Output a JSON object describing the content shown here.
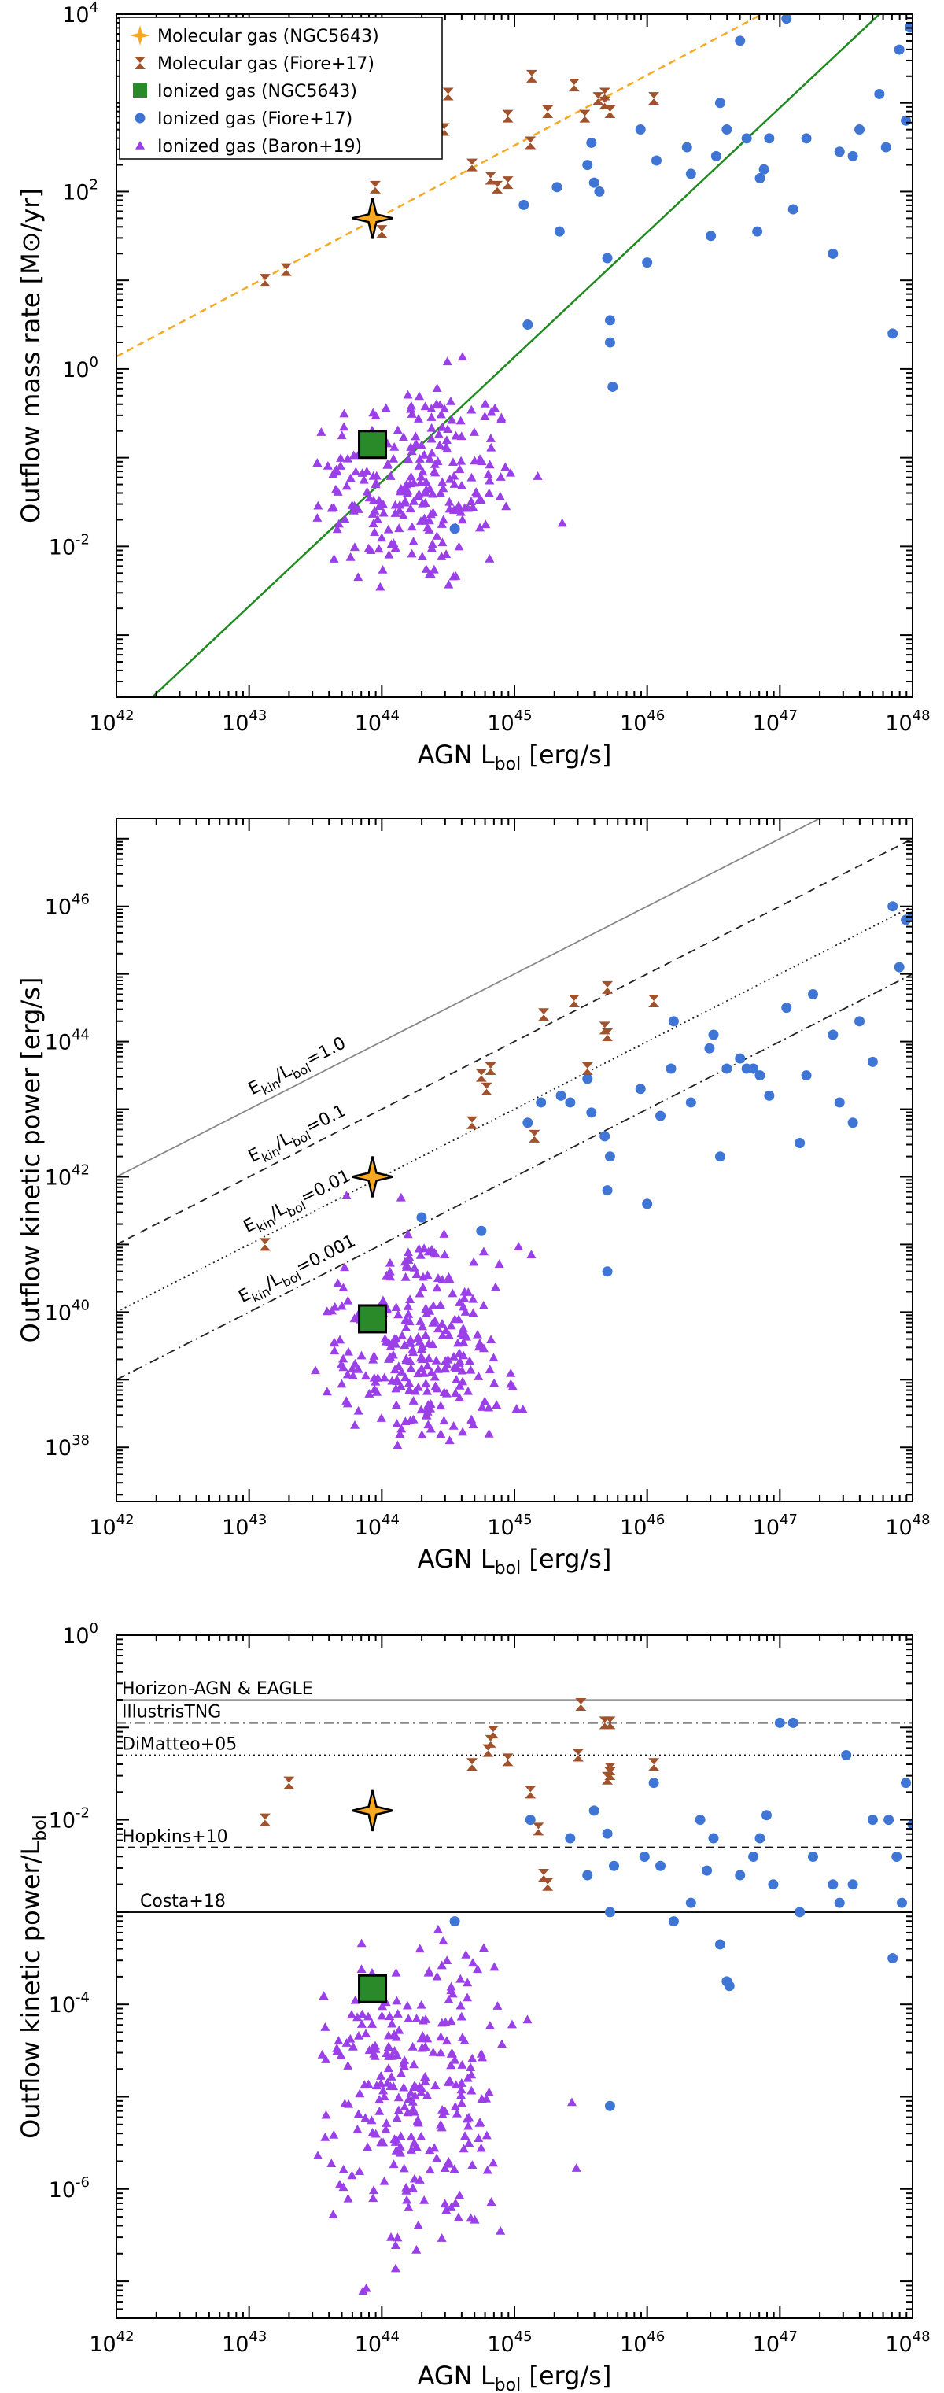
{
  "colors": {
    "molecular_ngc": "#f7a823",
    "molecular_fiore": "#a0522d",
    "ionized_ngc": "#2a8a2a",
    "ionized_fiore": "#3f76d6",
    "ionized_baron": "#9b3fe8",
    "fit_molecular": "#f7a823",
    "fit_ionized": "#1f8a1f"
  },
  "chart_data": [
    {
      "type": "scatter",
      "title": "",
      "xlabel": "AGN L_bol [erg/s]",
      "xlabel_parts": [
        "AGN L",
        "bol",
        " [erg/s]"
      ],
      "ylabel": "Outflow mass rate [M⊙/yr]",
      "xscale": "log",
      "yscale": "log",
      "xlim_log": [
        42,
        48
      ],
      "ylim_log": [
        -3.7,
        4
      ],
      "xticks_log": [
        42,
        43,
        44,
        45,
        46,
        47,
        48
      ],
      "yticks_log": [
        -2,
        0,
        2,
        4
      ],
      "legend_position": "top-left",
      "legend": [
        {
          "name": "Molecular gas (NGC5643)",
          "marker": "star"
        },
        {
          "name": "Molecular gas (Fiore+17)",
          "marker": "hourglass"
        },
        {
          "name": "Ionized gas (NGC5643)",
          "marker": "square"
        },
        {
          "name": "Ionized gas (Fiore+17)",
          "marker": "circle"
        },
        {
          "name": "Ionized gas (Baron+19)",
          "marker": "triangle"
        }
      ],
      "fits": [
        {
          "name": "Molecular fit",
          "style": "dashed",
          "x1": 42,
          "y1": 0.14,
          "x2": 48,
          "y2": 4.9
        },
        {
          "name": "Ionized fit",
          "style": "solid",
          "x1": 42.27,
          "y1": -3.7,
          "x2": 48,
          "y2": 4.35
        }
      ],
      "series": [
        {
          "name": "Molecular gas (NGC5643)",
          "marker": "star",
          "points": [
            [
              43.93,
              1.7
            ]
          ]
        },
        {
          "name": "Ionized gas (NGC5643)",
          "marker": "square",
          "points": [
            [
              43.93,
              -0.85
            ]
          ]
        },
        {
          "name": "Molecular gas (Fiore+17)",
          "marker": "hourglass",
          "points": [
            [
              43.12,
              1.0
            ],
            [
              43.28,
              1.12
            ],
            [
              43.95,
              2.05
            ],
            [
              44.0,
              1.55
            ],
            [
              44.47,
              2.7
            ],
            [
              44.5,
              3.1
            ],
            [
              44.68,
              2.3
            ],
            [
              44.82,
              2.15
            ],
            [
              44.87,
              2.05
            ],
            [
              44.95,
              2.85
            ],
            [
              45.12,
              2.55
            ],
            [
              45.13,
              3.3
            ],
            [
              45.25,
              2.9
            ],
            [
              45.45,
              3.2
            ],
            [
              45.53,
              2.85
            ],
            [
              45.63,
              3.05
            ],
            [
              45.68,
              3.1
            ],
            [
              45.68,
              3.0
            ],
            [
              45.72,
              2.9
            ],
            [
              46.05,
              3.05
            ],
            [
              44.95,
              2.1
            ]
          ]
        },
        {
          "name": "Ionized gas (Fiore+17)",
          "marker": "circle",
          "points": [
            [
              44.55,
              -1.8
            ],
            [
              45.07,
              1.85
            ],
            [
              45.1,
              0.5
            ],
            [
              45.32,
              2.05
            ],
            [
              45.34,
              1.55
            ],
            [
              45.55,
              2.3
            ],
            [
              45.58,
              2.55
            ],
            [
              45.6,
              2.1
            ],
            [
              45.64,
              2.0
            ],
            [
              45.7,
              1.25
            ],
            [
              45.72,
              0.3
            ],
            [
              45.72,
              0.55
            ],
            [
              45.74,
              -0.2
            ],
            [
              45.95,
              2.7
            ],
            [
              46.07,
              2.35
            ],
            [
              46.3,
              2.5
            ],
            [
              46.33,
              2.2
            ],
            [
              46.48,
              1.5
            ],
            [
              46.52,
              2.4
            ],
            [
              46.55,
              3.0
            ],
            [
              46.6,
              2.7
            ],
            [
              46.75,
              2.6
            ],
            [
              46.83,
              1.55
            ],
            [
              46.85,
              2.15
            ],
            [
              46.88,
              2.25
            ],
            [
              46.92,
              2.6
            ],
            [
              47.05,
              3.95
            ],
            [
              47.1,
              1.8
            ],
            [
              47.2,
              2.6
            ],
            [
              47.4,
              1.3
            ],
            [
              47.45,
              2.45
            ],
            [
              47.55,
              2.4
            ],
            [
              47.75,
              3.1
            ],
            [
              47.9,
              3.6
            ],
            [
              47.95,
              2.8
            ],
            [
              47.98,
              3.85
            ],
            [
              46.0,
              1.2
            ],
            [
              46.7,
              3.7
            ],
            [
              47.6,
              2.7
            ],
            [
              47.8,
              2.5
            ],
            [
              47.85,
              0.4
            ]
          ]
        }
      ],
      "baron_cloud": {
        "name": "Ionized gas (Baron+19)",
        "marker": "triangle",
        "count": 240,
        "xlog_range": [
          43.5,
          45.5
        ],
        "ylog_range": [
          -2.6,
          0.5
        ],
        "center_log": [
          44.25,
          -1.3
        ]
      }
    },
    {
      "type": "scatter",
      "title": "",
      "xlabel": "AGN L_bol [erg/s]",
      "xlabel_parts": [
        "AGN L",
        "bol",
        " [erg/s]"
      ],
      "ylabel": "Outflow kinetic power [erg/s]",
      "xscale": "log",
      "yscale": "log",
      "xlim_log": [
        42,
        48
      ],
      "ylim_log": [
        37.2,
        47.3
      ],
      "xticks_log": [
        42,
        43,
        44,
        45,
        46,
        47,
        48
      ],
      "yticks_log": [
        38,
        40,
        42,
        44,
        46
      ],
      "reference_lines": [
        {
          "label": "E_kin/L_bol=1.0",
          "label_parts": [
            "E",
            "kin",
            "/L",
            "bol",
            "=1.0"
          ],
          "ratio_log": 0,
          "style": "solid"
        },
        {
          "label": "E_kin/L_bol=0.1",
          "label_parts": [
            "E",
            "kin",
            "/L",
            "bol",
            "=0.1"
          ],
          "ratio_log": -1,
          "style": "dashed"
        },
        {
          "label": "E_kin/L_bol=0.01",
          "label_parts": [
            "E",
            "kin",
            "/L",
            "bol",
            "=0.01"
          ],
          "ratio_log": -2,
          "style": "dotted"
        },
        {
          "label": "E_kin/L_bol=0.001",
          "label_parts": [
            "E",
            "kin",
            "/L",
            "bol",
            "=0.001"
          ],
          "ratio_log": -3,
          "style": "dashdot"
        }
      ],
      "series": [
        {
          "name": "Molecular gas (NGC5643)",
          "marker": "star",
          "points": [
            [
              43.93,
              42.0
            ]
          ]
        },
        {
          "name": "Ionized gas (NGC5643)",
          "marker": "square",
          "points": [
            [
              43.93,
              39.9
            ]
          ]
        },
        {
          "name": "Molecular gas (Fiore+17)",
          "marker": "hourglass",
          "points": [
            [
              43.12,
              41.0
            ],
            [
              44.68,
              42.8
            ],
            [
              44.75,
              43.5
            ],
            [
              44.79,
              43.3
            ],
            [
              44.82,
              43.6
            ],
            [
              45.15,
              42.6
            ],
            [
              45.22,
              44.4
            ],
            [
              45.45,
              44.6
            ],
            [
              45.55,
              43.6
            ],
            [
              45.68,
              44.2
            ],
            [
              45.7,
              44.1
            ],
            [
              45.7,
              44.8
            ],
            [
              46.05,
              44.6
            ]
          ]
        },
        {
          "name": "Ionized gas (Fiore+17)",
          "marker": "circle",
          "points": [
            [
              44.3,
              41.4
            ],
            [
              44.75,
              41.2
            ],
            [
              45.1,
              42.8
            ],
            [
              45.2,
              43.1
            ],
            [
              45.35,
              43.2
            ],
            [
              45.42,
              43.1
            ],
            [
              45.55,
              43.45
            ],
            [
              45.58,
              42.95
            ],
            [
              45.68,
              42.6
            ],
            [
              45.7,
              41.8
            ],
            [
              45.7,
              40.6
            ],
            [
              45.72,
              42.3
            ],
            [
              45.95,
              43.3
            ],
            [
              46.1,
              42.9
            ],
            [
              46.18,
              43.6
            ],
            [
              46.33,
              43.1
            ],
            [
              46.47,
              43.9
            ],
            [
              46.5,
              44.1
            ],
            [
              46.55,
              42.3
            ],
            [
              46.6,
              43.6
            ],
            [
              46.7,
              43.75
            ],
            [
              46.75,
              43.6
            ],
            [
              46.8,
              43.6
            ],
            [
              46.85,
              43.5
            ],
            [
              46.92,
              43.2
            ],
            [
              47.05,
              44.5
            ],
            [
              47.15,
              42.5
            ],
            [
              47.2,
              43.5
            ],
            [
              47.4,
              44.1
            ],
            [
              47.45,
              43.1
            ],
            [
              47.55,
              42.8
            ],
            [
              47.6,
              44.3
            ],
            [
              47.7,
              43.7
            ],
            [
              47.85,
              46.0
            ],
            [
              47.9,
              45.1
            ],
            [
              47.95,
              45.8
            ],
            [
              48.0,
              45.85
            ],
            [
              46.2,
              44.3
            ],
            [
              46.0,
              41.6
            ],
            [
              47.25,
              44.7
            ]
          ]
        }
      ],
      "baron_cloud": {
        "name": "Ionized gas (Baron+19)",
        "marker": "triangle",
        "count": 270,
        "xlog_range": [
          43.5,
          45.5
        ],
        "ylog_range": [
          38.0,
          41.9
        ],
        "center_log": [
          44.25,
          39.4
        ]
      }
    },
    {
      "type": "scatter",
      "title": "",
      "xlabel": "AGN L_bol [erg/s]",
      "xlabel_parts": [
        "AGN L",
        "bol",
        " [erg/s]"
      ],
      "ylabel": "Outflow kinetic power/L_bol",
      "ylabel_parts": [
        "Outflow kinetic power/L",
        "bol"
      ],
      "xscale": "log",
      "yscale": "log",
      "xlim_log": [
        42,
        48
      ],
      "ylim_log": [
        -7.4,
        0
      ],
      "xticks_log": [
        42,
        43,
        44,
        45,
        46,
        47,
        48
      ],
      "yticks_log": [
        -6,
        -4,
        -2,
        0
      ],
      "reference_lines": [
        {
          "label": "Horizon-AGN & EAGLE",
          "y_log": -0.7,
          "style": "solid-gray"
        },
        {
          "label": "IllustrisTNG",
          "y_log": -0.95,
          "style": "dashdot"
        },
        {
          "label": "DiMatteo+05",
          "y_log": -1.3,
          "style": "dotted"
        },
        {
          "label": "Hopkins+10",
          "y_log": -2.3,
          "style": "dashed"
        },
        {
          "label": "Costa+18",
          "y_log": -3.0,
          "style": "solid"
        }
      ],
      "series": [
        {
          "name": "Molecular gas (NGC5643)",
          "marker": "star",
          "points": [
            [
              43.93,
              -1.9
            ]
          ]
        },
        {
          "name": "Ionized gas (NGC5643)",
          "marker": "square",
          "points": [
            [
              43.93,
              -3.83
            ]
          ]
        },
        {
          "name": "Molecular gas (Fiore+17)",
          "marker": "hourglass",
          "points": [
            [
              43.12,
              -2.0
            ],
            [
              43.3,
              -1.6
            ],
            [
              44.68,
              -1.4
            ],
            [
              44.8,
              -1.25
            ],
            [
              44.82,
              -1.15
            ],
            [
              44.84,
              -1.05
            ],
            [
              44.95,
              -1.35
            ],
            [
              45.12,
              -1.7
            ],
            [
              45.18,
              -2.1
            ],
            [
              45.22,
              -2.6
            ],
            [
              45.25,
              -2.7
            ],
            [
              45.48,
              -1.3
            ],
            [
              45.5,
              -0.75
            ],
            [
              45.68,
              -0.95
            ],
            [
              45.7,
              -1.55
            ],
            [
              45.72,
              -1.45
            ],
            [
              45.72,
              -1.5
            ],
            [
              45.72,
              -0.95
            ],
            [
              46.05,
              -1.4
            ]
          ]
        },
        {
          "name": "Ionized gas (Fiore+17)",
          "marker": "circle",
          "points": [
            [
              44.55,
              -3.1
            ],
            [
              45.12,
              -2.0
            ],
            [
              45.42,
              -2.2
            ],
            [
              45.55,
              -2.6
            ],
            [
              45.6,
              -1.9
            ],
            [
              45.7,
              -2.15
            ],
            [
              45.72,
              -3.0
            ],
            [
              45.72,
              -5.1
            ],
            [
              45.75,
              -2.5
            ],
            [
              45.98,
              -2.4
            ],
            [
              46.1,
              -2.5
            ],
            [
              46.2,
              -3.1
            ],
            [
              46.33,
              -2.9
            ],
            [
              46.45,
              -2.55
            ],
            [
              46.5,
              -2.2
            ],
            [
              46.55,
              -3.35
            ],
            [
              46.6,
              -3.75
            ],
            [
              46.62,
              -3.8
            ],
            [
              46.7,
              -2.6
            ],
            [
              46.8,
              -2.4
            ],
            [
              46.85,
              -2.2
            ],
            [
              46.9,
              -1.95
            ],
            [
              47.0,
              -0.95
            ],
            [
              47.1,
              -0.95
            ],
            [
              47.15,
              -3.0
            ],
            [
              47.25,
              -2.4
            ],
            [
              47.4,
              -2.7
            ],
            [
              47.45,
              -2.9
            ],
            [
              47.5,
              -1.3
            ],
            [
              47.55,
              -2.7
            ],
            [
              47.7,
              -2.0
            ],
            [
              47.82,
              -2.0
            ],
            [
              47.85,
              -3.5
            ],
            [
              47.88,
              -2.4
            ],
            [
              47.92,
              -2.9
            ],
            [
              47.95,
              -1.6
            ],
            [
              48.0,
              -2.05
            ],
            [
              46.4,
              -2.0
            ],
            [
              46.05,
              -1.6
            ],
            [
              46.95,
              -2.7
            ]
          ]
        }
      ],
      "baron_cloud": {
        "name": "Ionized gas (Baron+19)",
        "marker": "triangle",
        "count": 270,
        "xlog_range": [
          43.5,
          45.5
        ],
        "ylog_range": [
          -7.2,
          -3.0
        ],
        "center_log": [
          44.25,
          -5.0
        ]
      }
    }
  ]
}
